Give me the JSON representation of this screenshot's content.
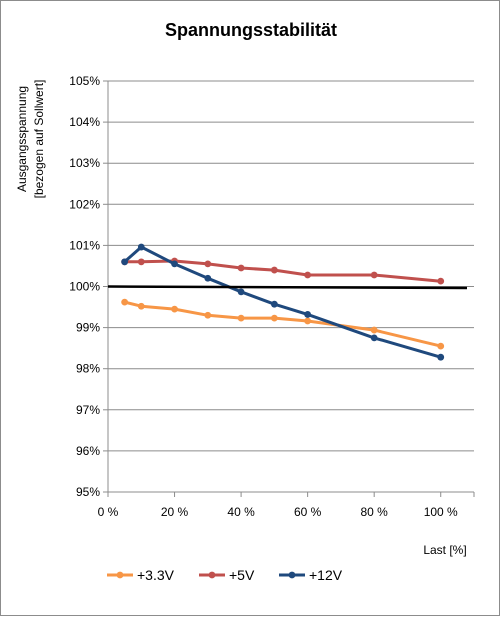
{
  "chart_data": {
    "type": "line",
    "title": "Spannungsstabilität",
    "ylabel_lines": [
      "Ausgangsspannung",
      "[bezogen auf Sollwert]"
    ],
    "xlabel": "Last [%]",
    "ylim": [
      95,
      105
    ],
    "xlim": [
      0,
      110
    ],
    "yticks": [
      95,
      96,
      97,
      98,
      99,
      100,
      101,
      102,
      103,
      104,
      105
    ],
    "ytick_labels": [
      "95%",
      "96%",
      "97%",
      "98%",
      "99%",
      "100%",
      "101%",
      "102%",
      "103%",
      "104%",
      "105%"
    ],
    "xticks": [
      0,
      20,
      40,
      60,
      80,
      100
    ],
    "xtick_labels": [
      "0 %",
      "20 %",
      "40 %",
      "60 %",
      "80 %",
      "100 %"
    ],
    "grid": "horizontal",
    "legend_position": "bottom",
    "reference_line": {
      "y": 100,
      "color": "#000000"
    },
    "series": [
      {
        "name": "+3.3V",
        "color": "#F79646",
        "x": [
          5,
          10,
          20,
          30,
          40,
          50,
          60,
          80,
          100
        ],
        "values": [
          99.62,
          99.52,
          99.45,
          99.3,
          99.23,
          99.23,
          99.16,
          98.94,
          98.55
        ]
      },
      {
        "name": "+5V",
        "color": "#C0504D",
        "x": [
          5,
          10,
          20,
          30,
          40,
          50,
          60,
          80,
          100
        ],
        "values": [
          100.6,
          100.6,
          100.62,
          100.55,
          100.45,
          100.4,
          100.28,
          100.28,
          100.13
        ]
      },
      {
        "name": "+12V",
        "color": "#1F497D",
        "x": [
          5,
          10,
          20,
          30,
          40,
          50,
          60,
          80,
          100
        ],
        "values": [
          100.6,
          100.96,
          100.55,
          100.2,
          99.87,
          99.57,
          99.32,
          98.75,
          98.28
        ]
      }
    ]
  }
}
